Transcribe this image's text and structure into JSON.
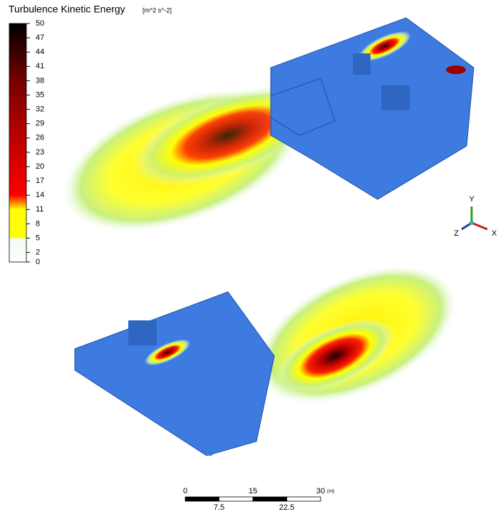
{
  "legend": {
    "title": "Turbulence Kinetic Energy",
    "unit": "[m^2 s^-2]",
    "ticks": [
      50,
      47,
      44,
      41,
      38,
      35,
      32,
      29,
      26,
      23,
      20,
      17,
      14,
      11,
      8,
      5,
      2,
      0
    ]
  },
  "axes_triad": {
    "y": "Y",
    "z": "Z",
    "x": "X"
  },
  "scale_bar": {
    "top_labels": [
      0,
      15,
      30
    ],
    "unit": "(m)",
    "bottom_labels": [
      7.5,
      22.5
    ]
  }
}
